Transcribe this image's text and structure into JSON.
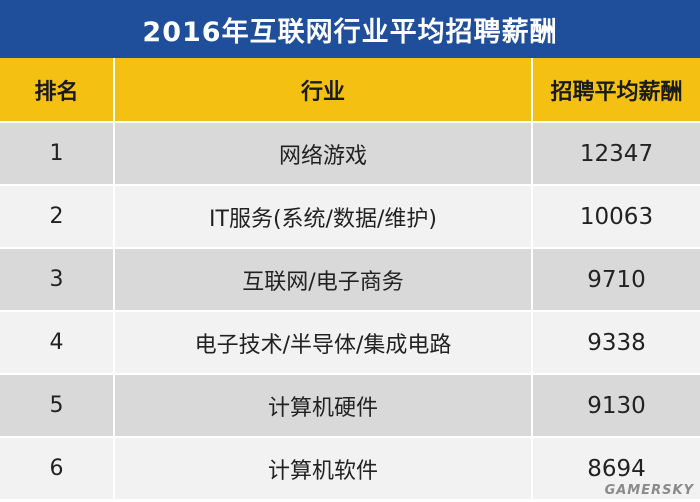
{
  "title": "2016年互联网行业平均招聘薪酬",
  "headers": {
    "rank": "排名",
    "industry": "行业",
    "salary": "招聘平均薪酬"
  },
  "rows": [
    {
      "rank": "1",
      "industry": "网络游戏",
      "salary": "12347"
    },
    {
      "rank": "2",
      "industry": "IT服务(系统/数据/维护)",
      "salary": "10063"
    },
    {
      "rank": "3",
      "industry": "互联网/电子商务",
      "salary": "9710"
    },
    {
      "rank": "4",
      "industry": "电子技术/半导体/集成电路",
      "salary": "9338"
    },
    {
      "rank": "5",
      "industry": "计算机硬件",
      "salary": "9130"
    },
    {
      "rank": "6",
      "industry": "计算机软件",
      "salary": "8694"
    }
  ],
  "watermark": "GAMERSKY",
  "colors": {
    "title_bg": "#1f4e9b",
    "header_bg": "#f4c112",
    "row_odd": "#d9d9d9",
    "row_even": "#f2f2f2"
  }
}
